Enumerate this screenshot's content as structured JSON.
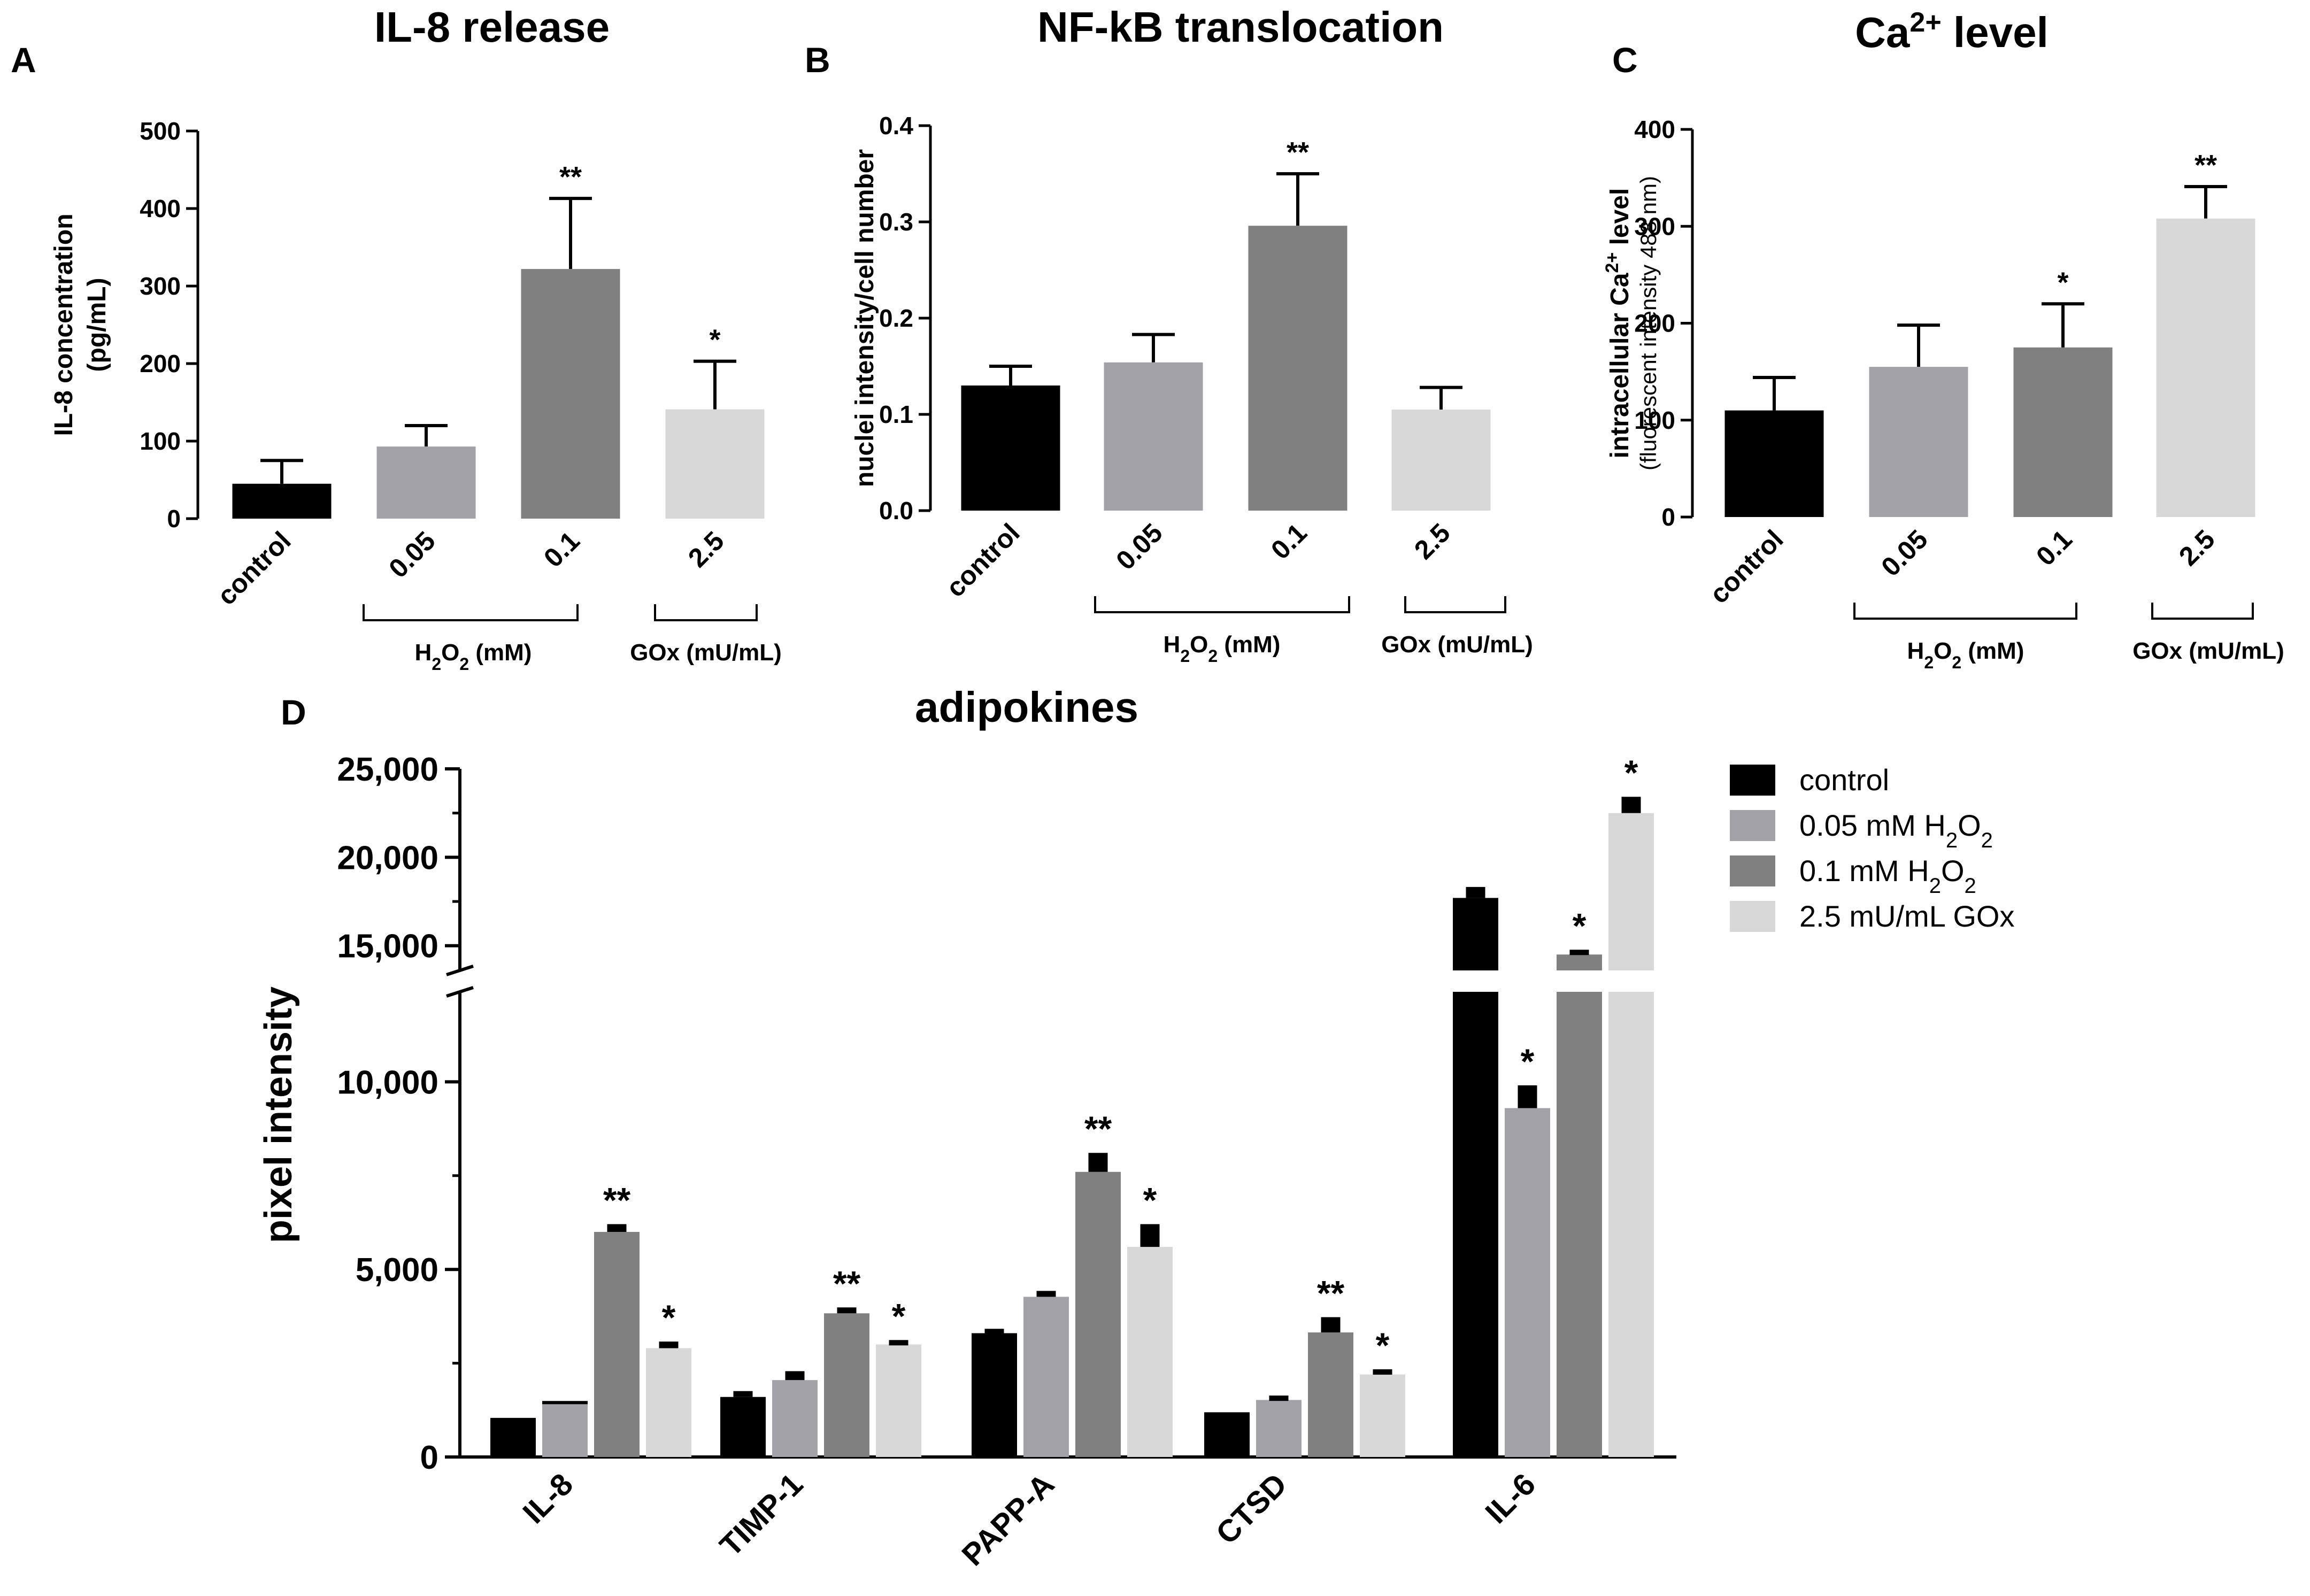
{
  "colors": {
    "control": "#000000",
    "h2o2_005": "#a2a2a8",
    "h2o2_01": "#808080",
    "gox_25": "#d8d8d8"
  },
  "chart_data": [
    {
      "panel": "A",
      "type": "bar",
      "title": "IL-8 release",
      "ylabel": "IL-8 concentration",
      "ylabel_unit": "(pg/mL)",
      "ylim": [
        0,
        500
      ],
      "yticks": [
        "0",
        "100",
        "200",
        "300",
        "400",
        "500"
      ],
      "categories": [
        "control",
        "0.05",
        "0.1",
        "2.5"
      ],
      "values": [
        45,
        93,
        322,
        141
      ],
      "errors": [
        30,
        27,
        91,
        62
      ],
      "significance": [
        "",
        "",
        "**",
        "*"
      ],
      "groups": [
        {
          "label_main": "H",
          "sub1": "2",
          "mid": "O",
          "sub2": "2",
          "tail": " (mM)"
        },
        {
          "label_main": "GOx (mU/mL)"
        }
      ]
    },
    {
      "panel": "B",
      "type": "bar",
      "title": "NF-kB translocation",
      "ylabel": "nuclei intensity/cell number",
      "ylim": [
        0,
        0.4
      ],
      "yticks": [
        "0.0",
        "0.1",
        "0.2",
        "0.3",
        "0.4"
      ],
      "categories": [
        "control",
        "0.05",
        "0.1",
        "2.5"
      ],
      "values": [
        0.13,
        0.154,
        0.296,
        0.105
      ],
      "errors": [
        0.02,
        0.029,
        0.054,
        0.023
      ],
      "significance": [
        "",
        "",
        "**",
        ""
      ],
      "groups": [
        {
          "label_main": "H",
          "sub1": "2",
          "mid": "O",
          "sub2": "2",
          "tail": " (mM)"
        },
        {
          "label_main": "GOx (mU/mL)"
        }
      ]
    },
    {
      "panel": "C",
      "type": "bar",
      "title_main": "Ca",
      "title_sup": "2+",
      "title_tail": " level",
      "ylabel_main": "intracellular Ca",
      "ylabel_sup": "2+",
      "ylabel_tail": " level",
      "ylabel_sub": "(fluorescent intensity 488 nm)",
      "ylim": [
        0,
        400
      ],
      "yticks": [
        "0",
        "100",
        "200",
        "300",
        "400"
      ],
      "categories": [
        "control",
        "0.05",
        "0.1",
        "2.5"
      ],
      "values": [
        110,
        155,
        175,
        308
      ],
      "errors": [
        34,
        43,
        45,
        33
      ],
      "significance": [
        "",
        "",
        "*",
        "**"
      ],
      "groups": [
        {
          "label_main": "H",
          "sub1": "2",
          "mid": "O",
          "sub2": "2",
          "tail": " (mM)"
        },
        {
          "label_main": "GOx (mU/mL)"
        }
      ]
    },
    {
      "panel": "D",
      "type": "bar",
      "title": "adipokines",
      "ylabel": "pixel intensity",
      "axis_break": [
        12400,
        13600
      ],
      "ylim": [
        0,
        25000
      ],
      "yticks_lower": [
        "0",
        "5,000",
        "10,000"
      ],
      "yticks_upper": [
        "15,000",
        "20,000",
        "25,000"
      ],
      "categories": [
        "IL-8",
        "TIMP-1",
        "PAPP-A",
        "CTSD",
        "IL-6"
      ],
      "series": [
        {
          "name": "control",
          "values": [
            1000,
            1600,
            3300,
            1150,
            17700
          ],
          "errors": [
            0,
            100,
            60,
            0,
            500
          ],
          "significance": [
            "",
            "",
            "",
            "",
            ""
          ]
        },
        {
          "name_main": "0.05 mM H",
          "name_sub1": "2",
          "name_mid": "O",
          "name_sub2": "2",
          "values": [
            1450,
            2050,
            4270,
            1520,
            9300
          ],
          "errors": [
            0,
            180,
            100,
            60,
            550
          ],
          "significance": [
            "",
            "",
            "",
            "",
            "*"
          ]
        },
        {
          "name_main": "0.1 mM H",
          "name_sub1": "2",
          "name_mid": "O",
          "name_sub2": "2",
          "values": [
            6000,
            3830,
            7600,
            3320,
            14500
          ],
          "errors": [
            150,
            100,
            450,
            350,
            150
          ],
          "significance": [
            "**",
            "**",
            "**",
            "**",
            "*"
          ]
        },
        {
          "name": "2.5 mU/mL GOx",
          "values": [
            2900,
            3000,
            5600,
            2200,
            22500
          ],
          "errors": [
            120,
            60,
            550,
            80,
            800
          ],
          "significance": [
            "*",
            "*",
            "*",
            "*",
            "*"
          ]
        }
      ],
      "legend_position": "top-right"
    }
  ]
}
